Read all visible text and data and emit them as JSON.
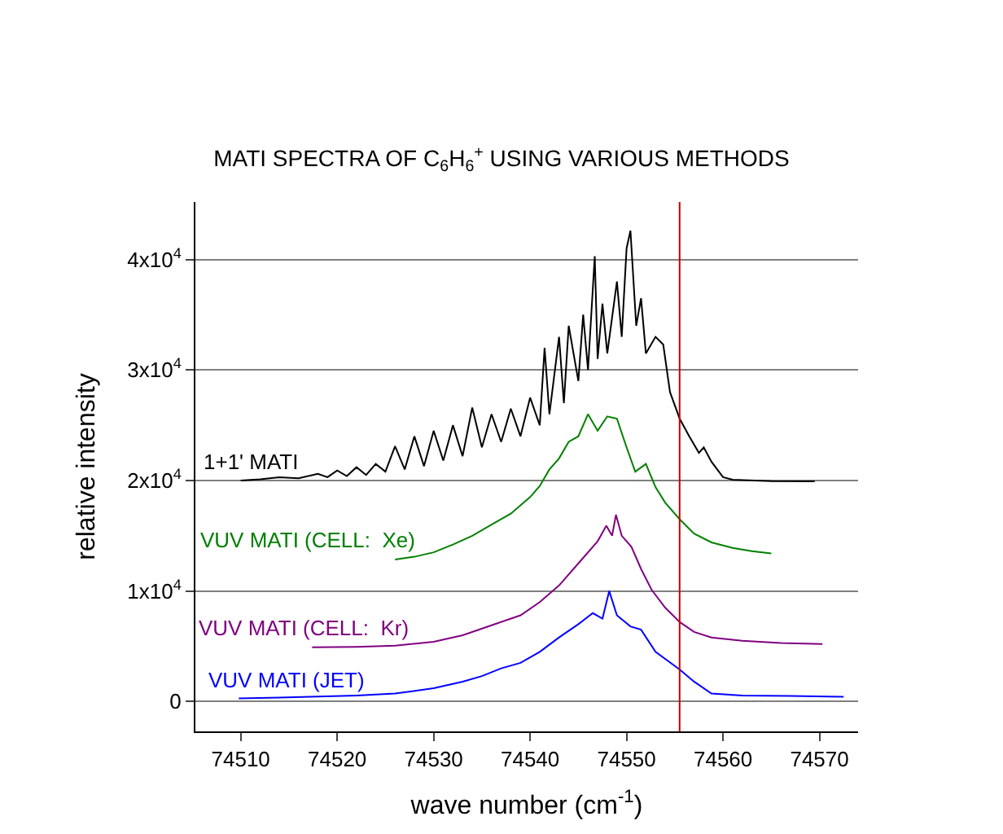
{
  "chart_data": {
    "type": "line",
    "title": "MATI SPECTRA OF C$_{6}$H$_{6}$$^{+}$ USING VARIOUS METHODS",
    "xlabel": "wave number (cm$^{-1}$)",
    "ylabel": "relative intensity",
    "xlim": [
      74505.3,
      74574
    ],
    "xticks": [
      74510,
      74520,
      74530,
      74540,
      74550,
      74560,
      74570
    ],
    "ylim": [
      -2700,
      45200
    ],
    "yticks": [
      {
        "value": 0,
        "label": "0"
      },
      {
        "value": 10000,
        "label": "1x10$^{4}$"
      },
      {
        "value": 20000,
        "label": "2x10$^{4}$"
      },
      {
        "value": 30000,
        "label": "3x10$^{4}$"
      },
      {
        "value": 40000,
        "label": "4x10$^{4}$"
      }
    ],
    "grid": "y",
    "legend": false,
    "marker": "none",
    "line_style": "solid",
    "ref_lines": [
      {
        "axis": "x",
        "value": 74555.5,
        "color": "#cc0000"
      }
    ],
    "series": [
      {
        "name": "1+1' MATI",
        "color": "#000000",
        "x": [
          74510,
          74512,
          74514,
          74516,
          74518,
          74519,
          74520,
          74521,
          74522,
          74523,
          74524,
          74525,
          74526,
          74527,
          74528,
          74529,
          74530,
          74531,
          74532,
          74533,
          74534,
          74535,
          74536,
          74537,
          74538,
          74539,
          74540,
          74541,
          74541.5,
          74542,
          74543,
          74543.5,
          74544,
          74545,
          74545.5,
          74546,
          74546.7,
          74547,
          74547.5,
          74548,
          74549,
          74549.5,
          74550,
          74550.4,
          74551,
          74551.5,
          74552,
          74553,
          74553.8,
          74554.5,
          74555.5,
          74556.5,
          74557.5,
          74558,
          74558.8,
          74560,
          74561,
          74565,
          74569.5
        ],
        "values": [
          20000,
          20100,
          20300,
          20200,
          20600,
          20300,
          20900,
          20400,
          21200,
          20500,
          21500,
          20800,
          23100,
          21000,
          24000,
          21300,
          24500,
          21800,
          25000,
          22200,
          26600,
          23000,
          26000,
          23500,
          26500,
          24000,
          27500,
          25000,
          32000,
          26000,
          33000,
          27000,
          34000,
          29000,
          35000,
          30000,
          40300,
          31000,
          36000,
          31500,
          38000,
          33000,
          41000,
          42600,
          34000,
          36500,
          31500,
          33000,
          32300,
          28000,
          25600,
          24000,
          22500,
          23000,
          21700,
          20300,
          20070,
          19950,
          19930
        ]
      },
      {
        "name": "VUV MATI (CELL:  Xe)",
        "color": "#008000",
        "x": [
          74526,
          74528,
          74530,
          74532,
          74534,
          74536,
          74538,
          74540,
          74541,
          74542,
          74543,
          74544,
          74545,
          74546,
          74547,
          74548,
          74549,
          74550,
          74550.9,
          74552,
          74553,
          74554,
          74555.5,
          74557,
          74558.8,
          74561,
          74563,
          74565
        ],
        "values": [
          12850,
          13100,
          13500,
          14200,
          15000,
          16000,
          17000,
          18500,
          19500,
          21000,
          22000,
          23500,
          24000,
          26000,
          24500,
          25800,
          25600,
          23000,
          20800,
          21500,
          19400,
          18000,
          16500,
          15200,
          14400,
          13900,
          13600,
          13400
        ]
      },
      {
        "name": "VUV MATI (CELL:  Kr)",
        "color": "#800080",
        "x": [
          74517.4,
          74522,
          74526,
          74530,
          74533,
          74536,
          74539,
          74541,
          74543,
          74545,
          74547,
          74547.9,
          74548.5,
          74548.9,
          74549.5,
          74550.5,
          74551.5,
          74552.6,
          74554,
          74555.5,
          74557,
          74558.8,
          74562,
          74566,
          74570.3
        ],
        "values": [
          4900,
          4950,
          5050,
          5400,
          6000,
          6900,
          7800,
          9000,
          10500,
          12500,
          14500,
          15900,
          15000,
          16900,
          15000,
          14000,
          12000,
          10100,
          8500,
          7200,
          6300,
          5800,
          5500,
          5300,
          5200
        ]
      },
      {
        "name": "VUV MATI (JET)",
        "color": "#0000ff",
        "x": [
          74509.8,
          74514,
          74518,
          74522,
          74526,
          74530,
          74533,
          74535,
          74537,
          74539,
          74541,
          74543,
          74545,
          74546.5,
          74547.5,
          74548.2,
          74549,
          74550.4,
          74551.5,
          74553,
          74555.5,
          74557,
          74558.8,
          74562,
          74567,
          74572.5
        ],
        "values": [
          290,
          350,
          450,
          550,
          720,
          1200,
          1800,
          2300,
          3000,
          3500,
          4500,
          5800,
          7000,
          8000,
          7500,
          10000,
          7800,
          6800,
          6500,
          4500,
          2900,
          1800,
          720,
          550,
          500,
          430
        ]
      }
    ]
  }
}
